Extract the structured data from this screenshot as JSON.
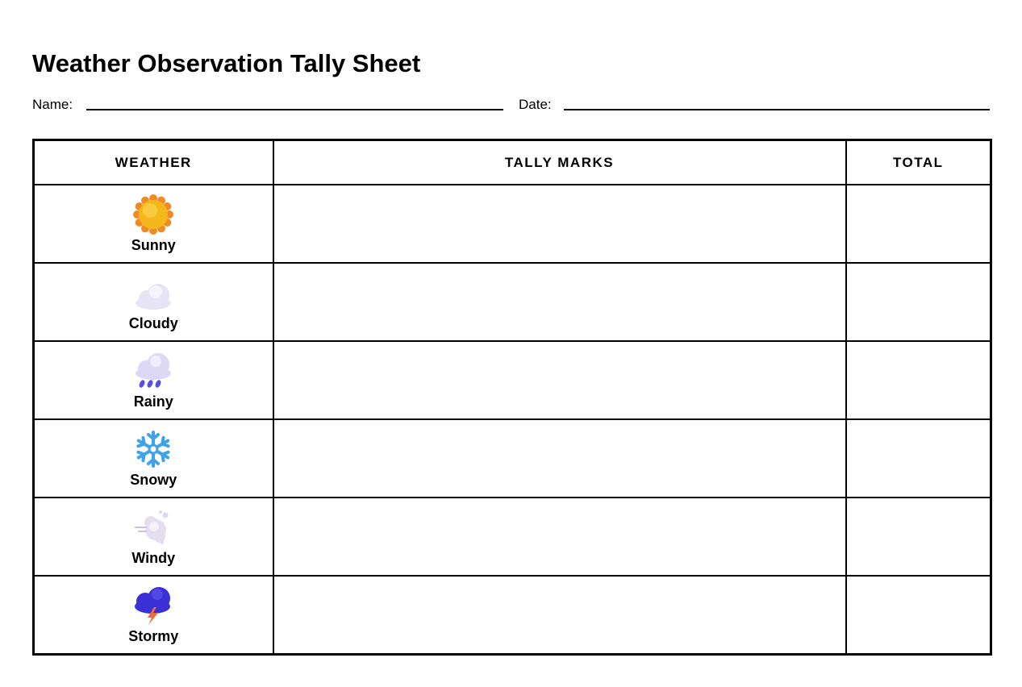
{
  "sheet": {
    "title": "Weather Observation Tally Sheet",
    "name_label": "Name:",
    "date_label": "Date:"
  },
  "table": {
    "headers": [
      "WEATHER",
      "TALLY MARKS",
      "TOTAL"
    ],
    "rows": [
      {
        "label": "Sunny",
        "icon": "sun-icon"
      },
      {
        "label": "Cloudy",
        "icon": "cloud-icon"
      },
      {
        "label": "Rainy",
        "icon": "rain-cloud-icon"
      },
      {
        "label": "Snowy",
        "icon": "snowflake-icon"
      },
      {
        "label": "Windy",
        "icon": "wind-icon"
      },
      {
        "label": "Stormy",
        "icon": "storm-cloud-icon"
      }
    ]
  },
  "colors": {
    "sun": "#f5b81c",
    "sun_rays": "#f08a24",
    "cloud": "#e6e4f5",
    "rain": "#5b4de0",
    "snow": "#3fa3ec",
    "storm_cloud": "#3b2fd6",
    "lightning": "#f06a3a"
  }
}
